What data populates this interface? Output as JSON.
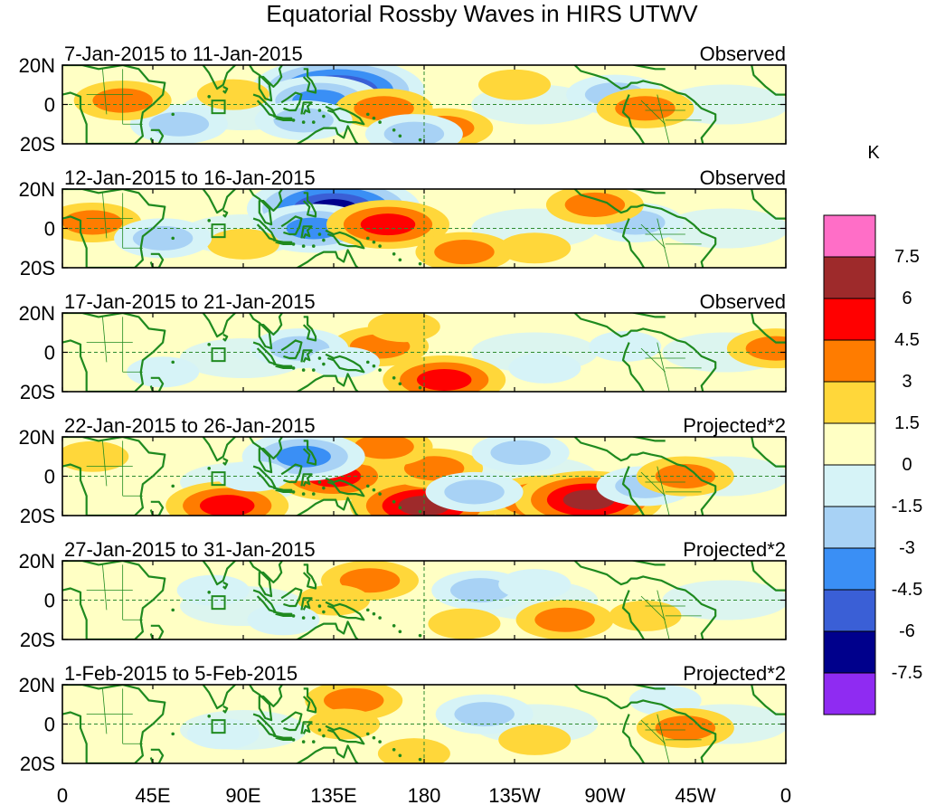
{
  "chart_data": {
    "type": "heatmap",
    "title": "Equatorial Rossby Waves in HIRS UTWV",
    "units": "K",
    "panels": [
      {
        "date_range": "7-Jan-2015 to 11-Jan-2015",
        "status": "Observed",
        "blobs": [
          {
            "lon": 137,
            "lat": 7,
            "v": -7.5
          },
          {
            "lon": 128,
            "lat": 2,
            "v": -4.5
          },
          {
            "lon": 160,
            "lat": -2,
            "v": 3
          },
          {
            "lon": 190,
            "lat": -12,
            "v": 3
          },
          {
            "lon": 120,
            "lat": -8,
            "v": -3
          },
          {
            "lon": 175,
            "lat": -15,
            "v": -3
          },
          {
            "lon": 275,
            "lat": 5,
            "v": -3
          },
          {
            "lon": 290,
            "lat": -2,
            "v": 3
          },
          {
            "lon": 58,
            "lat": -10,
            "v": -3
          },
          {
            "lon": 30,
            "lat": 2,
            "v": 3
          },
          {
            "lon": 85,
            "lat": 5,
            "v": 1.5
          },
          {
            "lon": 225,
            "lat": 10,
            "v": 1.5
          }
        ]
      },
      {
        "date_range": "12-Jan-2015 to 16-Jan-2015",
        "status": "Observed",
        "blobs": [
          {
            "lon": 135,
            "lat": 10,
            "v": -7.5
          },
          {
            "lon": 125,
            "lat": 0,
            "v": -4.5
          },
          {
            "lon": 162,
            "lat": 2,
            "v": 4.5
          },
          {
            "lon": 200,
            "lat": -12,
            "v": 3
          },
          {
            "lon": 15,
            "lat": 3,
            "v": 3
          },
          {
            "lon": 285,
            "lat": 3,
            "v": -3
          },
          {
            "lon": 265,
            "lat": 12,
            "v": 3
          },
          {
            "lon": 90,
            "lat": -8,
            "v": 1.5
          },
          {
            "lon": 50,
            "lat": -5,
            "v": -3
          },
          {
            "lon": 235,
            "lat": -10,
            "v": 1.5
          }
        ]
      },
      {
        "date_range": "17-Jan-2015 to 21-Jan-2015",
        "status": "Observed",
        "blobs": [
          {
            "lon": 158,
            "lat": 3,
            "v": 3
          },
          {
            "lon": 190,
            "lat": -14,
            "v": 4.5
          },
          {
            "lon": 118,
            "lat": 2,
            "v": -3
          },
          {
            "lon": 140,
            "lat": -5,
            "v": -1.5
          },
          {
            "lon": 170,
            "lat": 13,
            "v": 1.5
          },
          {
            "lon": 240,
            "lat": -8,
            "v": -1.5
          },
          {
            "lon": 280,
            "lat": 3,
            "v": -1.5
          },
          {
            "lon": 355,
            "lat": 2,
            "v": 3
          },
          {
            "lon": 50,
            "lat": -10,
            "v": -1.5
          }
        ]
      },
      {
        "date_range": "22-Jan-2015 to 26-Jan-2015",
        "status": "Projected*2",
        "blobs": [
          {
            "lon": 135,
            "lat": 0,
            "v": 4.5
          },
          {
            "lon": 180,
            "lat": -15,
            "v": 6
          },
          {
            "lon": 240,
            "lat": -12,
            "v": 4.5
          },
          {
            "lon": 262,
            "lat": -12,
            "v": 6
          },
          {
            "lon": 82,
            "lat": -15,
            "v": 4.5
          },
          {
            "lon": 185,
            "lat": 4,
            "v": 3
          },
          {
            "lon": 160,
            "lat": 15,
            "v": 3
          },
          {
            "lon": 120,
            "lat": 10,
            "v": -4.5
          },
          {
            "lon": 228,
            "lat": 12,
            "v": -3
          },
          {
            "lon": 290,
            "lat": -5,
            "v": -3
          },
          {
            "lon": 310,
            "lat": 0,
            "v": 3
          },
          {
            "lon": 95,
            "lat": 0,
            "v": -1.5
          },
          {
            "lon": 205,
            "lat": -8,
            "v": -3
          },
          {
            "lon": 15,
            "lat": 10,
            "v": 1.5
          }
        ]
      },
      {
        "date_range": "27-Jan-2015 to 31-Jan-2015",
        "status": "Projected*2",
        "blobs": [
          {
            "lon": 153,
            "lat": 10,
            "v": 3
          },
          {
            "lon": 135,
            "lat": 0,
            "v": 1.5
          },
          {
            "lon": 208,
            "lat": 5,
            "v": -3
          },
          {
            "lon": 250,
            "lat": -10,
            "v": 3
          },
          {
            "lon": 200,
            "lat": -12,
            "v": 1.5
          },
          {
            "lon": 110,
            "lat": -10,
            "v": -1.5
          },
          {
            "lon": 75,
            "lat": 5,
            "v": -1.5
          },
          {
            "lon": 290,
            "lat": -8,
            "v": 1.5
          },
          {
            "lon": 235,
            "lat": 8,
            "v": -1.5
          }
        ]
      },
      {
        "date_range": "1-Feb-2015 to 5-Feb-2015",
        "status": "Projected*2",
        "blobs": [
          {
            "lon": 145,
            "lat": 12,
            "v": 3
          },
          {
            "lon": 140,
            "lat": 0,
            "v": 1.5
          },
          {
            "lon": 210,
            "lat": 5,
            "v": -3
          },
          {
            "lon": 235,
            "lat": -8,
            "v": 1.5
          },
          {
            "lon": 300,
            "lat": 12,
            "v": -1.5
          },
          {
            "lon": 310,
            "lat": -2,
            "v": 3
          },
          {
            "lon": 80,
            "lat": -5,
            "v": -1.5
          },
          {
            "lon": 175,
            "lat": -15,
            "v": 1.5
          }
        ]
      }
    ],
    "y_ticks": [
      "20N",
      "0",
      "20S"
    ],
    "y_tick_lats": [
      20,
      0,
      -20
    ],
    "x_ticks": [
      "0",
      "45E",
      "90E",
      "135E",
      "180",
      "135W",
      "90W",
      "45W",
      "0"
    ],
    "x_tick_lons": [
      0,
      45,
      90,
      135,
      180,
      225,
      270,
      315,
      360
    ],
    "lon_range": [
      0,
      360
    ],
    "lat_range": [
      -20,
      20
    ],
    "reference_lon": 180,
    "colorbar": {
      "levels": [
        "7.5",
        "6",
        "4.5",
        "3",
        "1.5",
        "0",
        "-1.5",
        "-3",
        "-4.5",
        "-6",
        "-7.5"
      ],
      "thresholds": [
        7.5,
        6,
        4.5,
        3,
        1.5,
        0,
        -1.5,
        -3,
        -4.5,
        -6,
        -7.5
      ],
      "colors": [
        "#ff6ec7",
        "#9e2a2b",
        "#ff0000",
        "#ff7c00",
        "#ffd73a",
        "#ffffc4",
        "#d6f3f7",
        "#a8d2f5",
        "#3a8ff5",
        "#3a5fd6",
        "#00008c",
        "#8f2bf2"
      ]
    },
    "coast_color": "#1f8a1f",
    "guide_color": "#2e8b2e"
  }
}
